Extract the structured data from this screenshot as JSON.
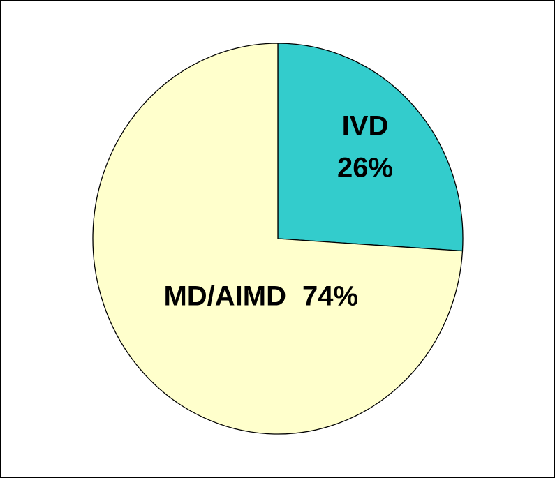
{
  "chart_data": {
    "type": "pie",
    "categories": [
      "IVD",
      "MD/AIMD"
    ],
    "values": [
      26,
      74
    ],
    "value_labels": [
      "26%",
      "74%"
    ],
    "colors": [
      "#33cccc",
      "#ffffcc"
    ]
  }
}
